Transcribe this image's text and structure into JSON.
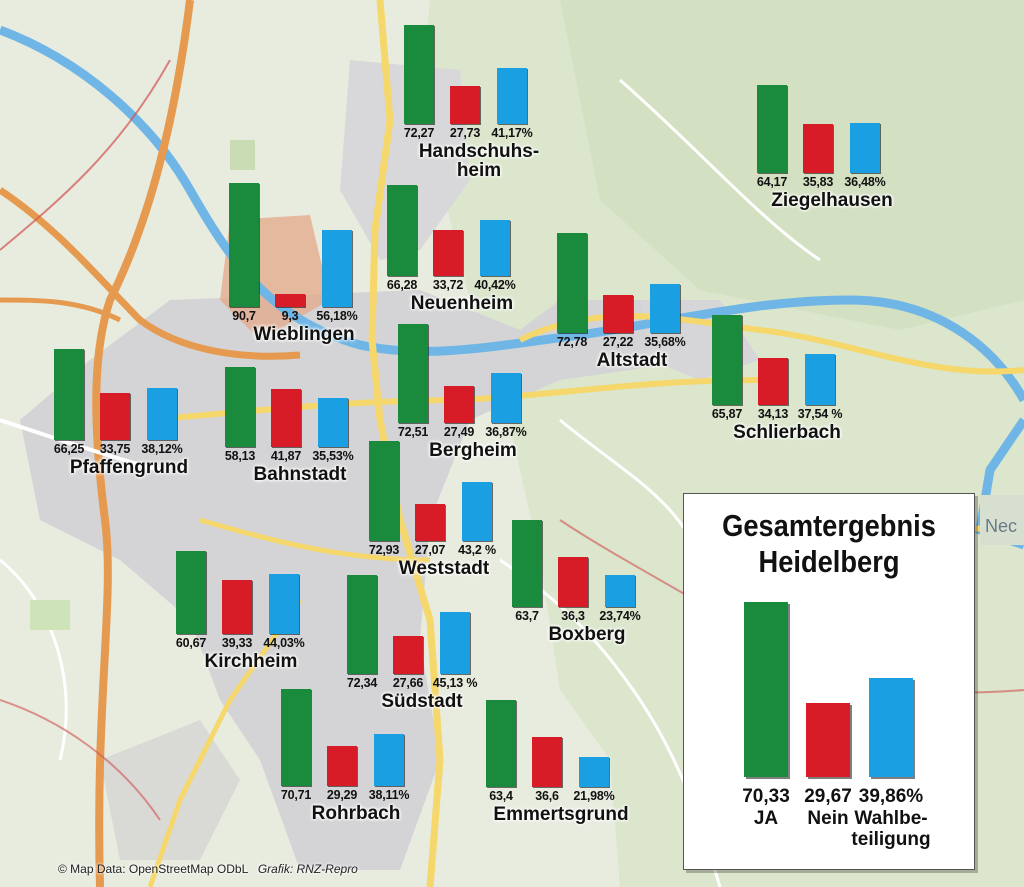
{
  "colors": {
    "ja": "#1a8b3c",
    "nein": "#d71c28",
    "beteiligung": "#1a9fe3"
  },
  "chart_data": {
    "type": "bar",
    "series_labels": [
      "JA",
      "Nein",
      "Wahlbeteiligung"
    ],
    "ylim": [
      0,
      100
    ],
    "districts": [
      {
        "name": "Handschuhs-heim",
        "ja": 72.27,
        "nein": 27.73,
        "beteiligung": 41.17,
        "labels": [
          "72,27",
          "27,73",
          "41,17%"
        ]
      },
      {
        "name": "Ziegelhausen",
        "ja": 64.17,
        "nein": 35.83,
        "beteiligung": 36.48,
        "labels": [
          "64,17",
          "35,83",
          "36,48%"
        ]
      },
      {
        "name": "Wieblingen",
        "ja": 90.7,
        "nein": 9.3,
        "beteiligung": 56.18,
        "labels": [
          "90,7",
          "9,3",
          "56,18%"
        ]
      },
      {
        "name": "Neuenheim",
        "ja": 66.28,
        "nein": 33.72,
        "beteiligung": 40.42,
        "labels": [
          "66,28",
          "33,72",
          "40,42%"
        ]
      },
      {
        "name": "Altstadt",
        "ja": 72.78,
        "nein": 27.22,
        "beteiligung": 35.68,
        "labels": [
          "72,78",
          "27,22",
          "35,68%"
        ]
      },
      {
        "name": "Schlierbach",
        "ja": 65.87,
        "nein": 34.13,
        "beteiligung": 37.54,
        "labels": [
          "65,87",
          "34,13",
          "37,54 %"
        ]
      },
      {
        "name": "Pfaffengrund",
        "ja": 66.25,
        "nein": 33.75,
        "beteiligung": 38.12,
        "labels": [
          "66,25",
          "33,75",
          "38,12%"
        ]
      },
      {
        "name": "Bahnstadt",
        "ja": 58.13,
        "nein": 41.87,
        "beteiligung": 35.53,
        "labels": [
          "58,13",
          "41,87",
          "35,53%"
        ]
      },
      {
        "name": "Bergheim",
        "ja": 72.51,
        "nein": 27.49,
        "beteiligung": 36.87,
        "labels": [
          "72,51",
          "27,49",
          "36,87%"
        ]
      },
      {
        "name": "Weststadt",
        "ja": 72.93,
        "nein": 27.07,
        "beteiligung": 43.2,
        "labels": [
          "72,93",
          "27,07",
          "43,2 %"
        ]
      },
      {
        "name": "Boxberg",
        "ja": 63.7,
        "nein": 36.3,
        "beteiligung": 23.74,
        "labels": [
          "63,7",
          "36,3",
          "23,74%"
        ]
      },
      {
        "name": "Kirchheim",
        "ja": 60.67,
        "nein": 39.33,
        "beteiligung": 44.03,
        "labels": [
          "60,67",
          "39,33",
          "44,03%"
        ]
      },
      {
        "name": "Südstadt",
        "ja": 72.34,
        "nein": 27.66,
        "beteiligung": 45.13,
        "labels": [
          "72,34",
          "27,66",
          "45,13 %"
        ]
      },
      {
        "name": "Rohrbach",
        "ja": 70.71,
        "nein": 29.29,
        "beteiligung": 38.11,
        "labels": [
          "70,71",
          "29,29",
          "38,11%"
        ]
      },
      {
        "name": "Emmertsgrund",
        "ja": 63.4,
        "nein": 36.6,
        "beteiligung": 21.98,
        "labels": [
          "63,4",
          "36,6",
          "21,98%"
        ]
      }
    ],
    "total": {
      "title_line1": "Gesamtergebnis",
      "title_line2": "Heidelberg",
      "ja": 70.33,
      "nein": 29.67,
      "beteiligung": 39.86,
      "value_labels": [
        "70,33",
        "29,67",
        "39,86%"
      ],
      "category_labels": [
        "JA",
        "Nein",
        "Wahlbe-",
        "teiligung"
      ]
    }
  },
  "map": {
    "road_label": "Nec"
  },
  "credit": {
    "osm": "© Map Data: OpenStreetMap ODbL",
    "grafik": "Grafik: RNZ-Repro"
  }
}
